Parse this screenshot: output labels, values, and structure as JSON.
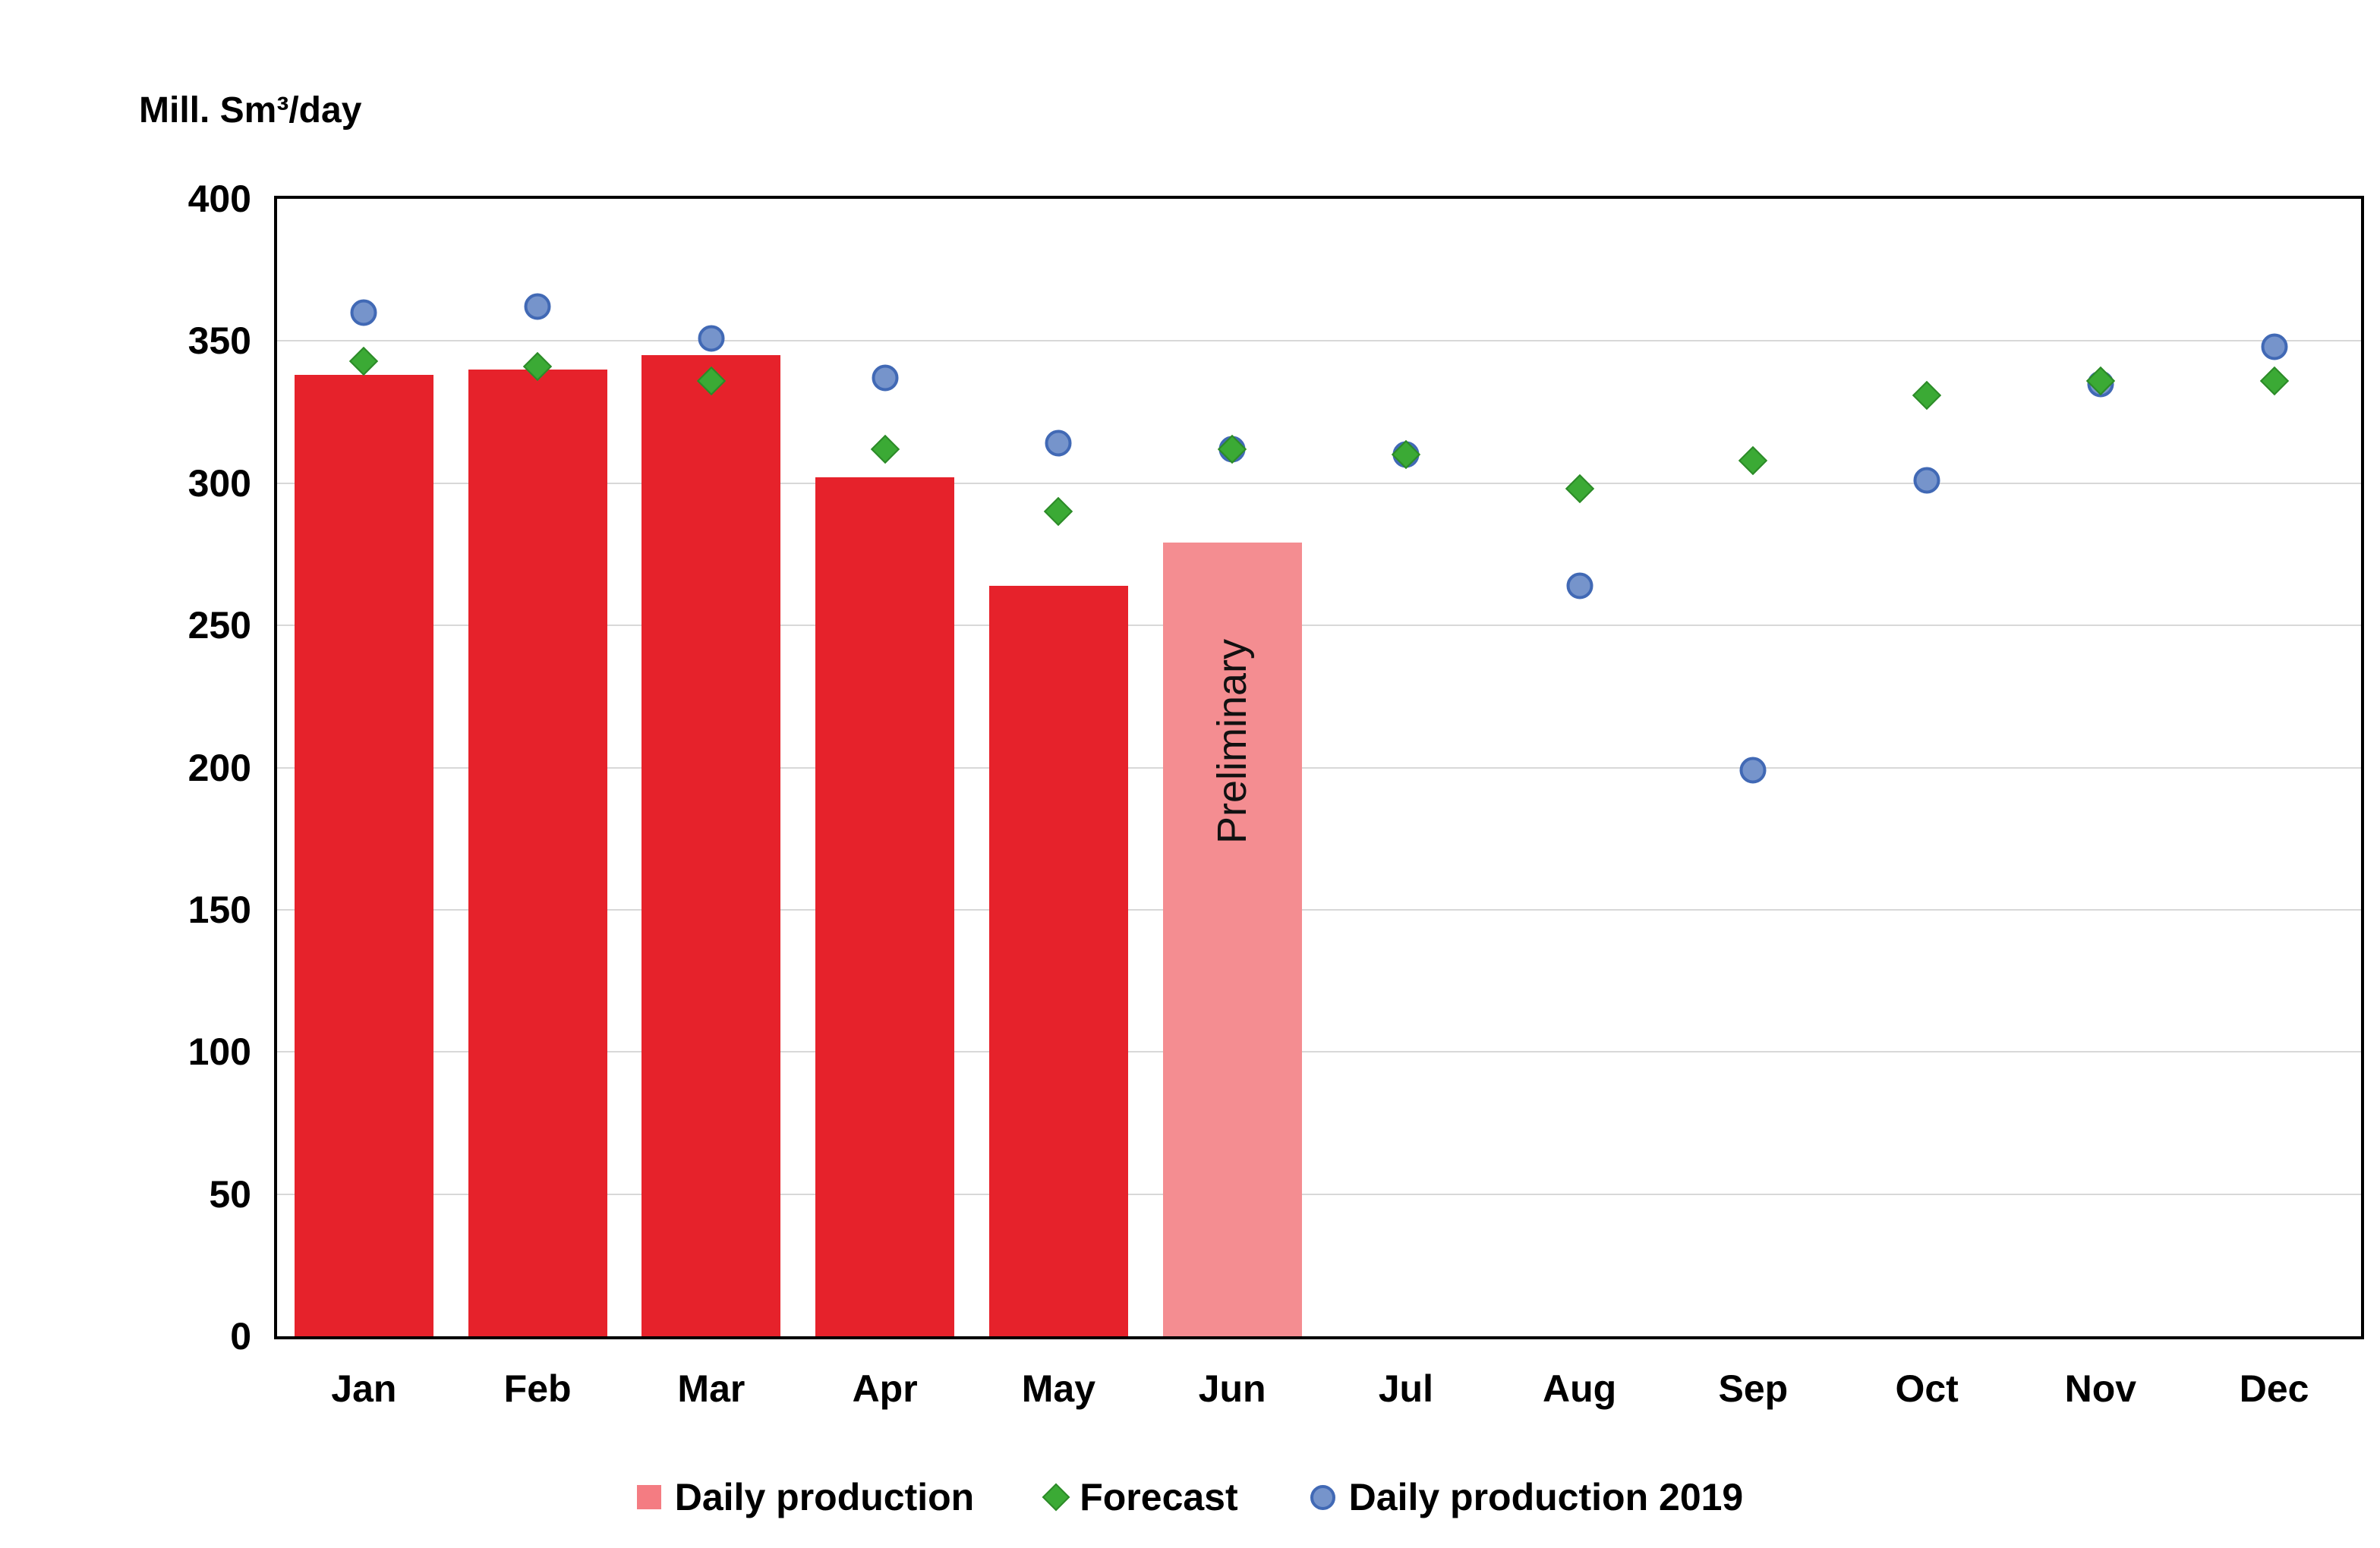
{
  "chart_data": {
    "type": "bar",
    "title": "Mill. Sm³/day",
    "categories": [
      "Jan",
      "Feb",
      "Mar",
      "Apr",
      "May",
      "Jun",
      "Jul",
      "Aug",
      "Sep",
      "Oct",
      "Nov",
      "Dec"
    ],
    "ylim": [
      0,
      400
    ],
    "ytick_step": 50,
    "grid_color": "#D8D8D8",
    "axis_color": "#000000",
    "series": [
      {
        "name": "Daily production",
        "type": "bar",
        "color": "#E6222B",
        "legend_color": "#F47C82",
        "values": [
          338,
          340,
          345,
          302,
          264,
          279,
          null,
          null,
          null,
          null,
          null,
          null
        ]
      },
      {
        "name": "Forecast",
        "type": "diamond",
        "color": "#3BAA35",
        "border": "#2C8A28",
        "values": [
          343,
          341,
          336,
          312,
          290,
          312,
          310,
          298,
          308,
          331,
          336,
          336
        ]
      },
      {
        "name": "Daily production 2019",
        "type": "circle",
        "color": "#7694CB",
        "border": "#4169B5",
        "values": [
          360,
          362,
          351,
          337,
          314,
          312,
          310,
          264,
          199,
          301,
          335,
          348
        ]
      }
    ],
    "legend_order": [
      "Daily production",
      "Forecast",
      "Daily production 2019"
    ],
    "preliminary": {
      "category": "Jun",
      "index": 5,
      "label": "Preliminary",
      "color": "#F48D91"
    }
  }
}
